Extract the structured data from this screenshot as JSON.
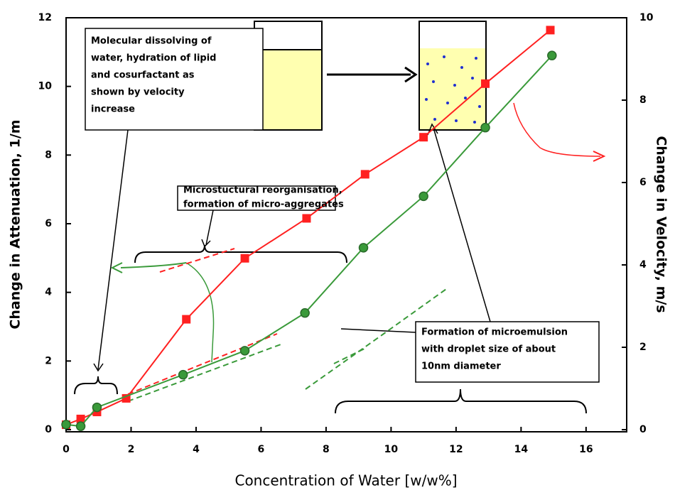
{
  "chart_data": {
    "type": "line",
    "x_label": "Concentration of Water [w/w%]",
    "y_label": "Change in Attenuation, 1/m",
    "y2_label": "Change in Velocity, m/s",
    "xlim": [
      0,
      17.25
    ],
    "xticks": [
      0,
      2,
      4,
      6,
      8,
      10,
      12,
      14,
      16
    ],
    "ylim": [
      0,
      12
    ],
    "yticks": [
      0,
      2,
      4,
      6,
      8,
      10,
      12
    ],
    "y2lim": [
      0,
      10
    ],
    "y2ticks": [
      0,
      2,
      4,
      6,
      8,
      10
    ],
    "series": [
      {
        "color": "#ff2020",
        "marker": "square",
        "axis": "y2",
        "x": [
          0,
          0.45,
          0.95,
          1.85,
          3.7,
          5.5,
          7.4,
          9.2,
          11.0,
          12.9,
          14.9
        ],
        "values": [
          0.12,
          0.26,
          0.43,
          0.76,
          2.68,
          4.16,
          5.13,
          6.2,
          7.1,
          8.4,
          9.7
        ]
      },
      {
        "color": "#3a9a3a",
        "marker": "circle",
        "x": [
          0,
          0.45,
          0.95,
          3.6,
          5.5,
          7.35,
          9.15,
          11.0,
          12.9,
          14.95
        ],
        "values": [
          0.15,
          0.1,
          0.65,
          1.6,
          2.3,
          3.4,
          5.3,
          6.8,
          8.8,
          10.9
        ]
      }
    ],
    "annotations": [
      {
        "lines": [
          "Molecular dissolving of",
          "water, hydration of lipid",
          "and cosurfactant as",
          "shown by velocity",
          "increase"
        ]
      },
      {
        "lines": [
          "Microstuctural reorganisation,",
          "formation of micro-aggregates"
        ]
      },
      {
        "lines": [
          "Formation of microemulsion",
          "with droplet size of about",
          "10nm diameter"
        ]
      }
    ]
  }
}
